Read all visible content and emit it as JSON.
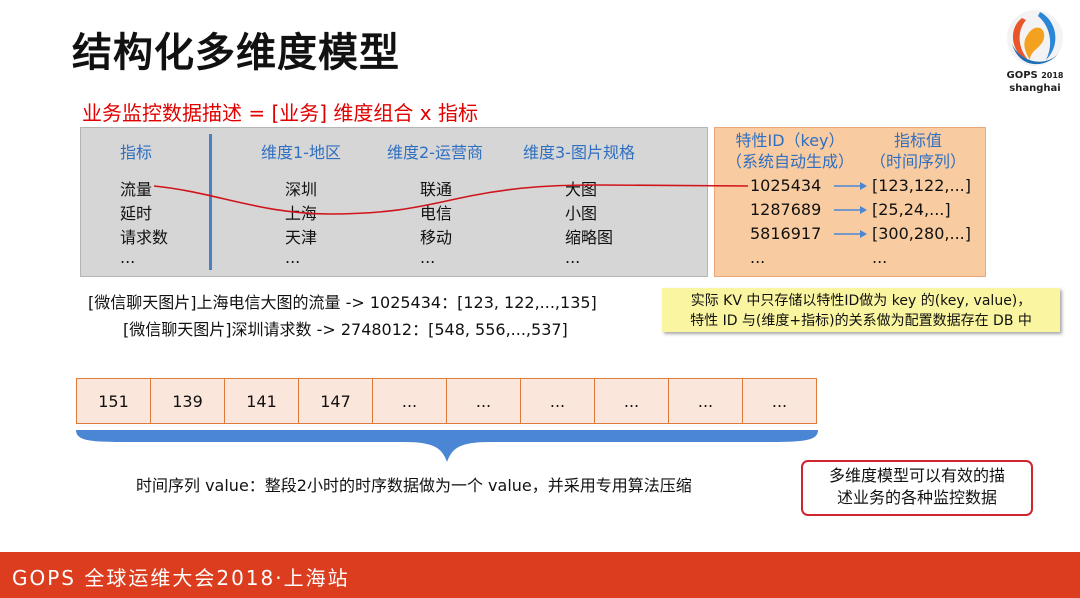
{
  "title": "结构化多维度模型",
  "logo": {
    "name": "GOPS",
    "year": "2018",
    "city": "shanghai"
  },
  "formula": "业务监控数据描述 = [业务] 维度组合 x 指标",
  "table": {
    "headers": {
      "metric": "指标",
      "dim1": "维度1-地区",
      "dim2": "维度2-运营商",
      "dim3": "维度3-图片规格"
    },
    "rows": [
      {
        "metric": "流量",
        "dim1": "深圳",
        "dim2": "联通",
        "dim3": "大图"
      },
      {
        "metric": "延时",
        "dim1": "上海",
        "dim2": "电信",
        "dim3": "小图"
      },
      {
        "metric": "请求数",
        "dim1": "天津",
        "dim2": "移动",
        "dim3": "缩略图"
      },
      {
        "metric": "...",
        "dim1": "...",
        "dim2": "...",
        "dim3": "..."
      }
    ]
  },
  "kv": {
    "header_key_line1": "特性ID（key）",
    "header_key_line2": "（系统自动生成）",
    "header_val_line1": "指标值",
    "header_val_line2": "（时间序列）",
    "rows": [
      {
        "key": "1025434",
        "value": "[123,122,...]"
      },
      {
        "key": "1287689",
        "value": "[25,24,...]"
      },
      {
        "key": "5816917",
        "value": "[300,280,...]"
      },
      {
        "key": "...",
        "value": "..."
      }
    ]
  },
  "examples": [
    "[微信聊天图片]上海电信大图的流量 -> 1025434：[123, 122,...,135]",
    "[微信聊天图片]深圳请求数 -> 2748012：[548, 556,...,537]"
  ],
  "note_yellow": {
    "line1": "实际 KV 中只存储以特性ID做为 key 的(key, value)，",
    "line2": "特性 ID 与(维度+指标)的关系做为配置数据存在 DB 中"
  },
  "series": [
    "151",
    "139",
    "141",
    "147",
    "...",
    "...",
    "...",
    "...",
    "...",
    "..."
  ],
  "caption": "时间序列 value：整段2小时的时序数据做为一个 value，并采用专用算法压缩",
  "red_note": {
    "line1": "多维度模型可以有效的描",
    "line2": "述业务的各种监控数据"
  },
  "footer": "GOPS 全球运维大会2018·上海站",
  "colors": {
    "header_blue": "#2f6fc1",
    "formula_red": "#e00000",
    "footer_red": "#dc3d1e",
    "curve_red": "#d0141c",
    "arrow_blue": "#4a86d4"
  }
}
